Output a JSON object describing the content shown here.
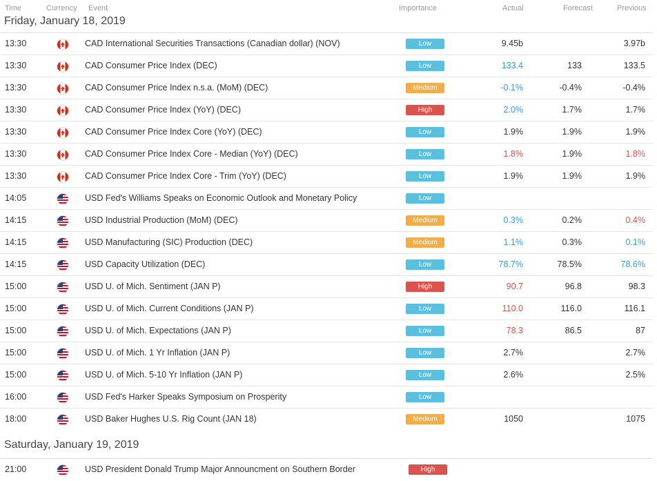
{
  "columns": {
    "time": "Time",
    "currency": "Currency",
    "event": "Event",
    "importance": "Importance",
    "actual": "Actual",
    "forecast": "Forecast",
    "previous": "Previous"
  },
  "days": [
    {
      "date": "Friday, January 18, 2019",
      "rows": [
        {
          "time": "13:30",
          "flag": "ca",
          "event": "CAD International Securities Transactions (Canadian dollar) (NOV)",
          "importance": "Low",
          "actual": "9.45b",
          "actual_color": "",
          "forecast": "",
          "previous": "3.97b",
          "previous_color": ""
        },
        {
          "time": "13:30",
          "flag": "ca",
          "event": "CAD Consumer Price Index (DEC)",
          "importance": "Low",
          "actual": "133.4",
          "actual_color": "blue",
          "forecast": "133",
          "previous": "133.5",
          "previous_color": ""
        },
        {
          "time": "13:30",
          "flag": "ca",
          "event": "CAD Consumer Price Index n.s.a. (MoM) (DEC)",
          "importance": "Medium",
          "actual": "-0.1%",
          "actual_color": "blue",
          "forecast": "-0.4%",
          "previous": "-0.4%",
          "previous_color": ""
        },
        {
          "time": "13:30",
          "flag": "ca",
          "event": "CAD Consumer Price Index (YoY) (DEC)",
          "importance": "High",
          "actual": "2.0%",
          "actual_color": "blue",
          "forecast": "1.7%",
          "previous": "1.7%",
          "previous_color": ""
        },
        {
          "time": "13:30",
          "flag": "ca",
          "event": "CAD Consumer Price Index Core (YoY) (DEC)",
          "importance": "Low",
          "actual": "1.9%",
          "actual_color": "",
          "forecast": "1.9%",
          "previous": "1.9%",
          "previous_color": ""
        },
        {
          "time": "13:30",
          "flag": "ca",
          "event": "CAD Consumer Price Index Core - Median (YoY) (DEC)",
          "importance": "Low",
          "actual": "1.8%",
          "actual_color": "red",
          "forecast": "1.9%",
          "previous": "1.8%",
          "previous_color": "red"
        },
        {
          "time": "13:30",
          "flag": "ca",
          "event": "CAD Consumer Price Index Core - Trim (YoY) (DEC)",
          "importance": "Low",
          "actual": "1.9%",
          "actual_color": "",
          "forecast": "1.9%",
          "previous": "1.9%",
          "previous_color": ""
        },
        {
          "time": "14:05",
          "flag": "us",
          "event": "USD Fed's Williams Speaks on Economic Outlook and Monetary Policy",
          "importance": "Low",
          "actual": "",
          "actual_color": "",
          "forecast": "",
          "previous": "",
          "previous_color": ""
        },
        {
          "time": "14:15",
          "flag": "us",
          "event": "USD Industrial Production (MoM) (DEC)",
          "importance": "Medium",
          "actual": "0.3%",
          "actual_color": "blue",
          "forecast": "0.2%",
          "previous": "0.4%",
          "previous_color": "red"
        },
        {
          "time": "14:15",
          "flag": "us",
          "event": "USD Manufacturing (SIC) Production (DEC)",
          "importance": "Medium",
          "actual": "1.1%",
          "actual_color": "blue",
          "forecast": "0.3%",
          "previous": "0.1%",
          "previous_color": "blue"
        },
        {
          "time": "14:15",
          "flag": "us",
          "event": "USD Capacity Utilization (DEC)",
          "importance": "Low",
          "actual": "78.7%",
          "actual_color": "blue",
          "forecast": "78.5%",
          "previous": "78.6%",
          "previous_color": "blue"
        },
        {
          "time": "15:00",
          "flag": "us",
          "event": "USD U. of Mich. Sentiment (JAN P)",
          "importance": "High",
          "actual": "90.7",
          "actual_color": "red",
          "forecast": "96.8",
          "previous": "98.3",
          "previous_color": ""
        },
        {
          "time": "15:00",
          "flag": "us",
          "event": "USD U. of Mich. Current Conditions (JAN P)",
          "importance": "Low",
          "actual": "110.0",
          "actual_color": "red",
          "forecast": "116.0",
          "previous": "116.1",
          "previous_color": ""
        },
        {
          "time": "15:00",
          "flag": "us",
          "event": "USD U. of Mich. Expectations (JAN P)",
          "importance": "Low",
          "actual": "78.3",
          "actual_color": "red",
          "forecast": "86.5",
          "previous": "87",
          "previous_color": ""
        },
        {
          "time": "15:00",
          "flag": "us",
          "event": "USD U. of Mich. 1 Yr Inflation (JAN P)",
          "importance": "Low",
          "actual": "2.7%",
          "actual_color": "",
          "forecast": "",
          "previous": "2.7%",
          "previous_color": ""
        },
        {
          "time": "15:00",
          "flag": "us",
          "event": "USD U. of Mich. 5-10 Yr Inflation (JAN P)",
          "importance": "Low",
          "actual": "2.6%",
          "actual_color": "",
          "forecast": "",
          "previous": "2.5%",
          "previous_color": ""
        },
        {
          "time": "16:00",
          "flag": "us",
          "event": "USD Fed's Harker Speaks Symposium on Prosperity",
          "importance": "Low",
          "actual": "",
          "actual_color": "",
          "forecast": "",
          "previous": "",
          "previous_color": ""
        },
        {
          "time": "18:00",
          "flag": "us",
          "event": "USD Baker Hughes U.S. Rig Count (JAN 18)",
          "importance": "Medium",
          "actual": "1050",
          "actual_color": "",
          "forecast": "",
          "previous": "1075",
          "previous_color": ""
        }
      ]
    },
    {
      "date": "Saturday, January 19, 2019",
      "rows": [
        {
          "time": "21:00",
          "flag": "us",
          "event": "USD President Donald Trump Major Announcment on Southern Border",
          "importance": "High",
          "actual": "",
          "actual_color": "",
          "forecast": "",
          "previous": "",
          "previous_color": ""
        }
      ]
    }
  ]
}
